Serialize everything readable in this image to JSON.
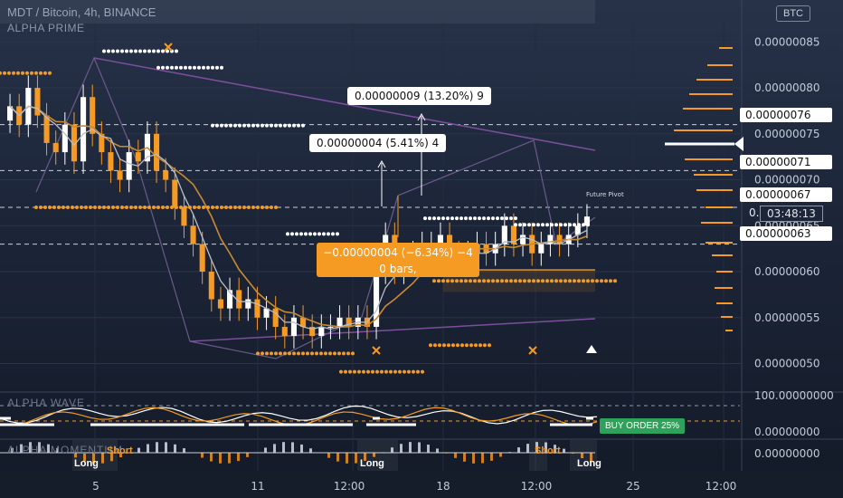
{
  "header": {
    "title": "MDT / Bitcoin, 4h, BINANCE",
    "indicator": "ALPHA PRIME",
    "currency_badge": "BTC"
  },
  "colors": {
    "accent_orange": "#f59a23",
    "bull_white": "#ffffff",
    "grid": "#2b3347",
    "buy_green": "#2ea15a",
    "trend_purple": "#7a4f9b"
  },
  "price_axis": {
    "ticks": [
      "0.00000085",
      "0.00000080",
      "0.00000075",
      "0.00000070",
      "0.00000065",
      "0.00000060",
      "0.00000055",
      "0.00000050"
    ],
    "tags": [
      "0.00000076",
      "0.00000071",
      "0.00000067",
      "0.00000063"
    ],
    "partial_tag": "0.",
    "countdown": "03:48:13"
  },
  "annotations": {
    "box_top": "0.00000009 (13.20%) 9",
    "box_mid": "0.00000004 (5.41%) 4",
    "box_orange_line1": "−0.00000004 (−6.34%) −4",
    "box_orange_line2": "0 bars,",
    "future_pivot": "Future Pivot"
  },
  "panes": {
    "wave_label": "ALPHA WAVE",
    "wave_ticks": [
      "100.00000000",
      "0.00000000"
    ],
    "momentum_label": "ALPHA MOMENTUM",
    "momentum_ticks": [
      "0.00000000"
    ],
    "buy_order": "BUY ORDER 25%",
    "signals": [
      {
        "text": "Long",
        "type": "long"
      },
      {
        "text": "Short",
        "type": "short"
      },
      {
        "text": "Long",
        "type": "long"
      },
      {
        "text": "Short",
        "type": "short"
      },
      {
        "text": "Long",
        "type": "long"
      }
    ]
  },
  "time_axis": {
    "labels": [
      "5",
      "11",
      "12:00",
      "18",
      "12:00",
      "25",
      "12:00"
    ]
  },
  "chart_data": {
    "type": "candlestick",
    "title": "MDT / Bitcoin, 4h, BINANCE",
    "ylim": [
      4.7e-07,
      8.7e-07
    ],
    "unit": "BTC",
    "approx_close_series": [
      7.8e-07,
      7.6e-07,
      8e-07,
      7.7e-07,
      7.4e-07,
      7.3e-07,
      7.6e-07,
      7.2e-07,
      7.9e-07,
      7.5e-07,
      7.3e-07,
      7.1e-07,
      7e-07,
      7.3e-07,
      7.2e-07,
      7.5e-07,
      7.1e-07,
      7e-07,
      6.7e-07,
      6.5e-07,
      6.3e-07,
      6e-07,
      5.7e-07,
      5.6e-07,
      5.8e-07,
      5.6e-07,
      5.7e-07,
      5.5e-07,
      5.6e-07,
      5.4e-07,
      5.3e-07,
      5.5e-07,
      5.4e-07,
      5.3e-07,
      5.4e-07,
      5.4e-07,
      5.5e-07,
      5.4e-07,
      5.5e-07,
      5.4e-07,
      6e-07,
      6.4e-07,
      6e-07,
      6.1e-07,
      6.2e-07,
      6.3e-07,
      6.3e-07,
      6.4e-07,
      6.2e-07,
      6.1e-07,
      6.2e-07,
      6.3e-07,
      6.2e-07,
      6.3e-07,
      6.5e-07,
      6.3e-07,
      6.4e-07,
      6.2e-07,
      6.3e-07,
      6.4e-07,
      6.3e-07,
      6.4e-07,
      6.5e-07,
      6.6e-07
    ],
    "levels": {
      "resistance": [
        7.6e-07,
        7.1e-07,
        6.7e-07
      ],
      "support": [
        6.3e-07
      ]
    },
    "grid": true
  }
}
